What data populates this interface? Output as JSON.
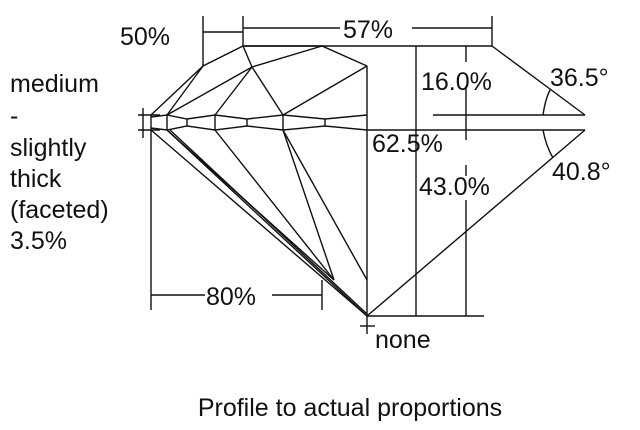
{
  "diagram": {
    "caption": "Profile to actual proportions",
    "girdle_label": [
      "medium",
      "-",
      "slightly",
      "thick",
      "(faceted)",
      "3.5%"
    ],
    "star_length": "50%",
    "table": "57%",
    "crown_height": "16.0%",
    "crown_angle": "36.5°",
    "total_depth": "62.5%",
    "pavilion_depth": "43.0%",
    "pavilion_angle": "40.8°",
    "lower_half_length": "80%",
    "culet": "none"
  }
}
